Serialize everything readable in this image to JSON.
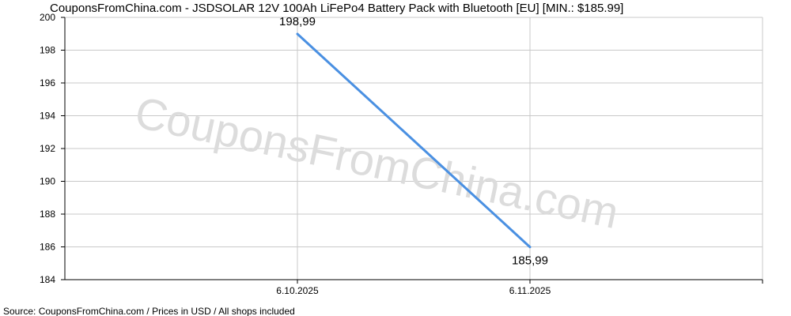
{
  "title": "CouponsFromChina.com - JSDSOLAR 12V 100Ah LiFePo4 Battery Pack with Bluetooth [EU] [MIN.: $185.99]",
  "source": "Source: CouponsFromChina.com / Prices in USD / All shops included",
  "watermark": "CouponsFromChina.com",
  "colors": {
    "line": "#4a90e2",
    "grid": "#c8c8c8",
    "axis": "#000000",
    "watermark": "#dcdcdc"
  },
  "chart_data": {
    "type": "line",
    "title": "CouponsFromChina.com - JSDSOLAR 12V 100Ah LiFePo4 Battery Pack with Bluetooth [EU] [MIN.: $185.99]",
    "xlabel": "",
    "ylabel": "",
    "x": [
      "6.10.2025",
      "6.11.2025"
    ],
    "x_ticks": [
      "6.10.2025",
      "6.11.2025"
    ],
    "series": [
      {
        "values": [
          198.99,
          185.99
        ],
        "labels": [
          "198,99",
          "185,99"
        ]
      }
    ],
    "ylim": [
      184,
      200
    ],
    "y_ticks": [
      "184",
      "186",
      "188",
      "190",
      "192",
      "194",
      "196",
      "198",
      "200"
    ],
    "grid": true,
    "legend": "none"
  }
}
